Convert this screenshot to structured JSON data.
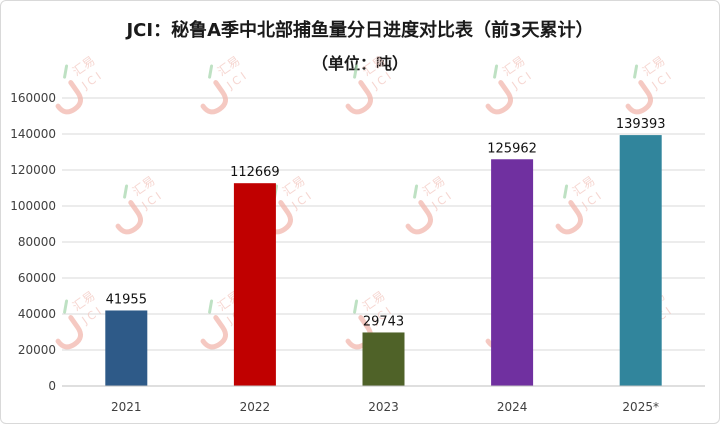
{
  "chart_data": {
    "type": "bar",
    "title": "JCI：秘鲁A季中北部捕鱼量分日进度对比表（前3天累计）",
    "subtitle": "（单位：吨）",
    "categories": [
      "2021",
      "2022",
      "2023",
      "2024",
      "2025*"
    ],
    "values": [
      41955,
      112669,
      29743,
      125962,
      139393
    ],
    "colors": [
      "#2e5a88",
      "#c00000",
      "#4f6228",
      "#7030a0",
      "#31859c"
    ],
    "ylim": [
      0,
      160000
    ],
    "yticks": [
      0,
      20000,
      40000,
      60000,
      80000,
      100000,
      120000,
      140000,
      160000
    ],
    "grid": true,
    "legend": "none",
    "xlabel": "",
    "ylabel": ""
  },
  "watermark": {
    "name": "汇易",
    "code": "JCI"
  }
}
